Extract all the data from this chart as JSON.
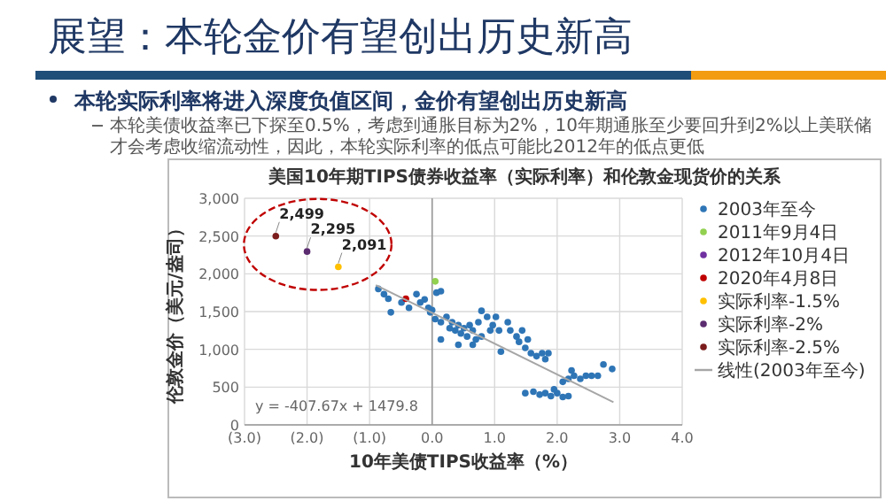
{
  "chart_data": {
    "type": "scatter",
    "title": "美国10年期TIPS债券收益率（实际利率）和伦敦金现货价的关系",
    "xlabel": "10年美债TIPS收益率（%）",
    "ylabel": "伦敦金价（美元/盎司）",
    "annotations": [
      "展望：本轮金价有望创出历史新高",
      "本轮实际利率将进入深度负值区间，金价有望创出历史新高",
      "本轮美债收益率已下探至0.5%，考虑到通胀目标为2%，10年期通胀至少要回升到2%以上美联储才会考虑收缩流动性，因此，本轮实际利率的低点可能比2012年的低点更低",
      "y = -407.67x + 1479.8"
    ],
    "xlim": [
      -3,
      4
    ],
    "xticks": [
      {
        "value": -3,
        "label": "(3.0)"
      },
      {
        "value": -2,
        "label": "(2.0)"
      },
      {
        "value": -1,
        "label": "(1.0)"
      },
      {
        "value": 0,
        "label": "0.0"
      },
      {
        "value": 1,
        "label": "1.0"
      },
      {
        "value": 2,
        "label": "2.0"
      },
      {
        "value": 3,
        "label": "3.0"
      },
      {
        "value": 4,
        "label": "4.0"
      }
    ],
    "ylim": [
      0,
      3000
    ],
    "yticks": [
      0,
      500,
      {
        "value": 1000,
        "label": "1,000"
      },
      {
        "value": 1500,
        "label": "1,500"
      },
      {
        "value": 2000,
        "label": "2,000"
      },
      {
        "value": 2500,
        "label": "2,500"
      },
      {
        "value": 3000,
        "label": "3,000"
      }
    ],
    "grid": true,
    "legend": "right",
    "marker": "circle",
    "series": [
      {
        "name": "2003年至今",
        "color": "#2e75b6",
        "x": [
          -0.86,
          -0.77,
          -0.7,
          -0.66,
          -0.49,
          -0.37,
          -0.25,
          -0.19,
          -0.12,
          -0.06,
          0,
          0.07,
          0.14,
          0.05,
          0.14,
          0.23,
          0.28,
          0.32,
          0.37,
          0.42,
          0.46,
          0.51,
          0.56,
          0.6,
          0.65,
          0.7,
          0.74,
          0.79,
          0.88,
          0.93,
          0.97,
          1.02,
          1.07,
          1.1,
          1.21,
          1.25,
          1.35,
          1.39,
          1.44,
          1.49,
          1.53,
          1.58,
          1.67,
          1.76,
          1.81,
          1.86,
          1.49,
          1.62,
          1.72,
          1.81,
          1.9,
          2.0,
          2.09,
          2.18,
          1.95,
          2.09,
          2.18,
          2.23,
          2.27,
          2.37,
          2.46,
          2.55,
          2.65,
          2.74,
          2.88,
          0.14,
          0.42,
          0.65,
          0.79,
          -0.03
        ],
        "values": [
          1800,
          1730,
          1670,
          1490,
          1620,
          1550,
          1730,
          1620,
          1660,
          1550,
          1520,
          1750,
          1770,
          1400,
          1360,
          1430,
          1280,
          1360,
          1250,
          1320,
          1210,
          1280,
          1170,
          1320,
          1250,
          1130,
          1360,
          1510,
          1430,
          1250,
          1320,
          1430,
          1250,
          970,
          1360,
          1250,
          1170,
          1100,
          1250,
          1020,
          1130,
          950,
          910,
          950,
          870,
          950,
          420,
          440,
          400,
          420,
          380,
          420,
          370,
          380,
          470,
          570,
          610,
          720,
          650,
          610,
          650,
          650,
          650,
          800,
          740,
          1130,
          1060,
          1060,
          1170,
          1490
        ]
      },
      {
        "name": "2011年9月4日",
        "color": "#92d050",
        "x": [
          0.05
        ],
        "values": [
          1900
        ]
      },
      {
        "name": "2012年10月4日",
        "color": "#7030a0"
      },
      {
        "name": "2020年4月8日",
        "color": "#c00000",
        "x": [
          -0.42
        ],
        "values": [
          1670
        ]
      },
      {
        "name": "实际利率-1.5%",
        "color": "#ffc000",
        "x": [
          -1.5
        ],
        "values": [
          2091
        ],
        "value_labels": [
          "2,091"
        ]
      },
      {
        "name": "实际利率-2%",
        "color": "#5b2c6f",
        "x": [
          -2
        ],
        "values": [
          2295
        ],
        "value_labels": [
          "2,295"
        ]
      },
      {
        "name": "实际利率-2.5%",
        "color": "#7b1c1c",
        "x": [
          -2.5
        ],
        "values": [
          2499
        ],
        "value_labels": [
          "2,499"
        ]
      },
      {
        "name": "线性(2003年至今)",
        "type": "line",
        "marker": "none",
        "color": "#a6a6a6",
        "x": [
          -0.9,
          2.9
        ],
        "values": [
          1850,
          300
        ]
      }
    ]
  }
}
